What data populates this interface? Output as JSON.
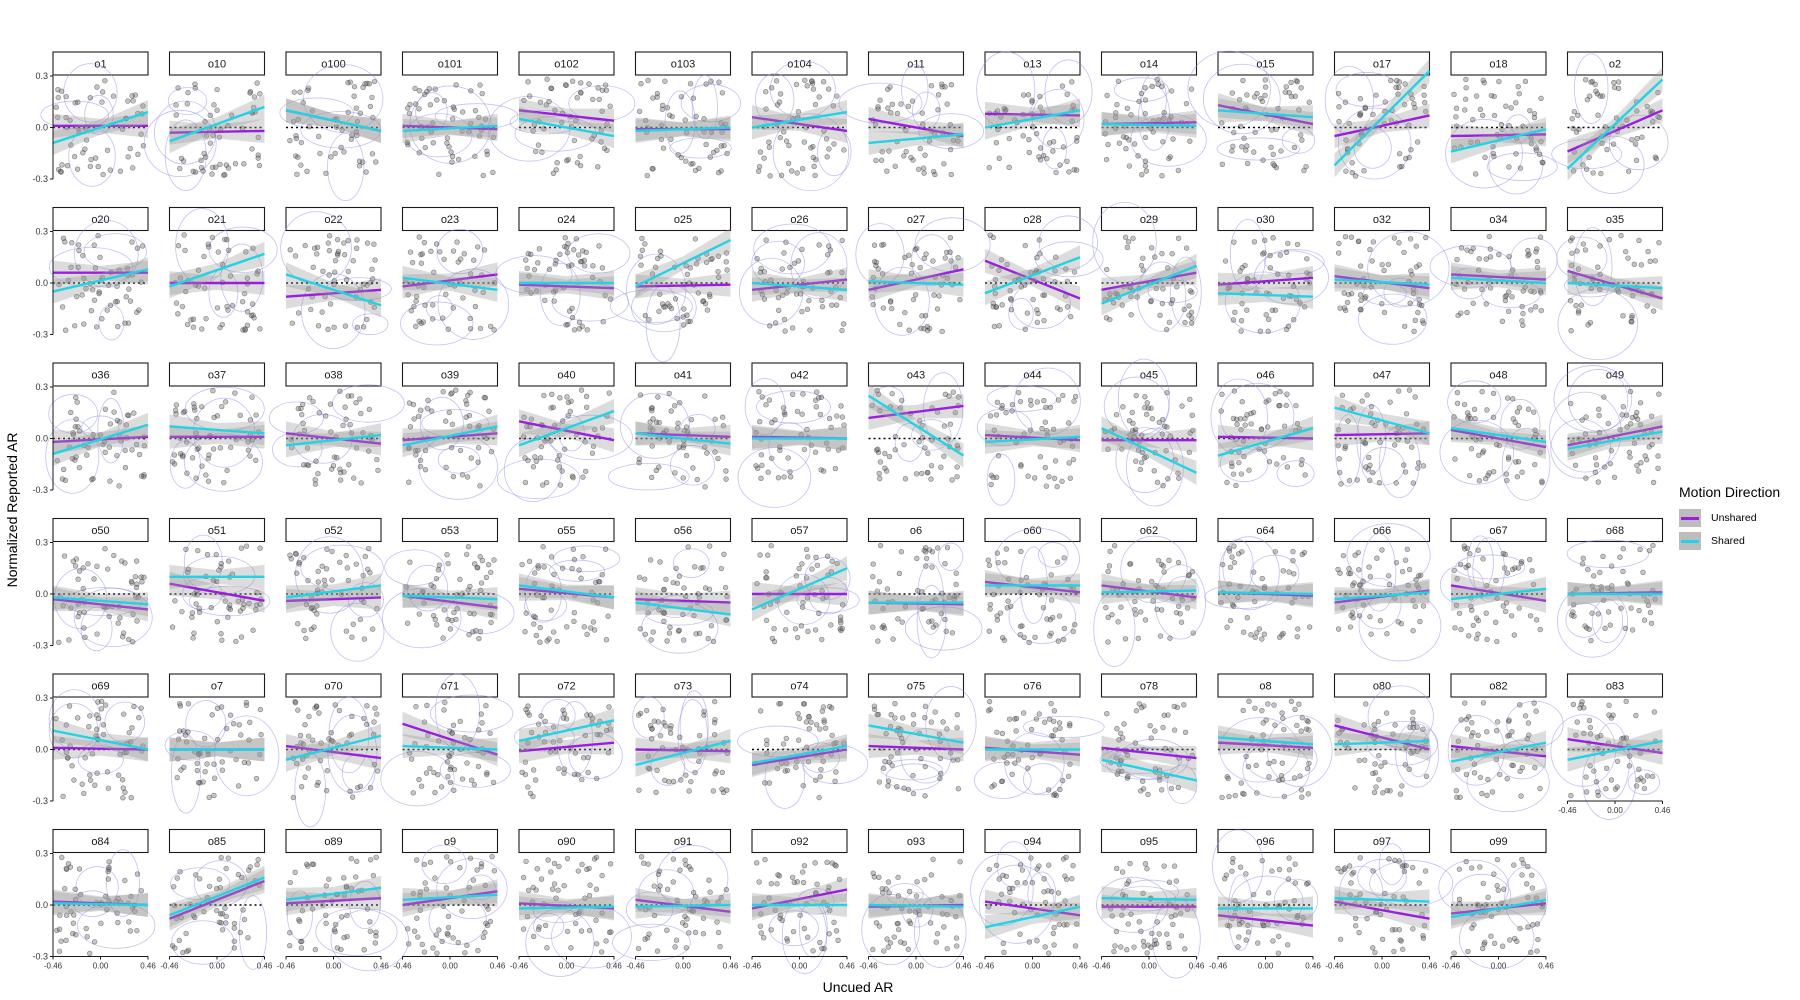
{
  "chart_data": {
    "type": "scatter",
    "layout": "facet_grid",
    "xlabel": "Uncued AR",
    "ylabel": "Normalized Reported AR",
    "x_ticks": [
      "-0.46",
      "0.00",
      "0.46"
    ],
    "y_ticks": [
      "0.3",
      "0.0",
      "-0.3"
    ],
    "xlim": [
      -0.46,
      0.46
    ],
    "ylim": [
      -0.3,
      0.3
    ],
    "reference_line": {
      "y": 0,
      "style": "dotted"
    },
    "grid": false,
    "legend": {
      "title": "Motion Direction",
      "placement": "right",
      "entries": [
        {
          "label": "Unshared",
          "color": "#9b1ee0"
        },
        {
          "label": "Shared",
          "color": "#22d3e6"
        }
      ]
    },
    "colors": {
      "unshared": "#9b1ee0",
      "shared": "#22d3e6",
      "points": "#5a5a5a",
      "ribbon": "#c4c4c4",
      "contour": "#8f8fe6"
    },
    "facets": [
      {
        "id": "o1",
        "unshared": [
          0.01,
          0.01
        ],
        "shared": [
          -0.09,
          0.09
        ]
      },
      {
        "id": "o10",
        "unshared": [
          -0.03,
          -0.02
        ],
        "shared": [
          -0.08,
          0.12
        ]
      },
      {
        "id": "o100",
        "unshared": [
          0.1,
          -0.02
        ],
        "shared": [
          0.1,
          -0.02
        ]
      },
      {
        "id": "o101",
        "unshared": [
          0.01,
          -0.01
        ],
        "shared": [
          -0.02,
          0.01
        ]
      },
      {
        "id": "o102",
        "unshared": [
          0.1,
          0.04
        ],
        "shared": [
          0.05,
          -0.05
        ]
      },
      {
        "id": "o103",
        "unshared": [
          -0.01,
          -0.01
        ],
        "shared": [
          -0.02,
          0.0
        ]
      },
      {
        "id": "o104",
        "unshared": [
          0.06,
          -0.02
        ],
        "shared": [
          0.0,
          0.09
        ]
      },
      {
        "id": "o11",
        "unshared": [
          0.05,
          -0.05
        ],
        "shared": [
          -0.09,
          -0.04
        ]
      },
      {
        "id": "o13",
        "unshared": [
          0.08,
          0.07
        ],
        "shared": [
          0.0,
          0.1
        ]
      },
      {
        "id": "o14",
        "unshared": [
          0.02,
          0.03
        ],
        "shared": [
          0.02,
          0.01
        ]
      },
      {
        "id": "o15",
        "unshared": [
          0.13,
          0.02
        ],
        "shared": [
          0.1,
          0.06
        ]
      },
      {
        "id": "o17",
        "unshared": [
          -0.05,
          0.07
        ],
        "shared": [
          -0.22,
          0.33
        ]
      },
      {
        "id": "o18",
        "unshared": [
          -0.05,
          -0.04
        ],
        "shared": [
          -0.14,
          -0.01
        ]
      },
      {
        "id": "o2",
        "unshared": [
          -0.14,
          0.1
        ],
        "shared": [
          -0.24,
          0.28
        ]
      },
      {
        "id": "o20",
        "unshared": [
          0.06,
          0.06
        ],
        "shared": [
          -0.05,
          0.08
        ]
      },
      {
        "id": "o21",
        "unshared": [
          0.0,
          0.0
        ],
        "shared": [
          -0.02,
          0.17
        ]
      },
      {
        "id": "o22",
        "unshared": [
          -0.08,
          -0.04
        ],
        "shared": [
          0.05,
          -0.13
        ]
      },
      {
        "id": "o23",
        "unshared": [
          -0.02,
          0.05
        ],
        "shared": [
          0.03,
          -0.04
        ]
      },
      {
        "id": "o24",
        "unshared": [
          -0.01,
          -0.03
        ],
        "shared": [
          0.0,
          0.0
        ]
      },
      {
        "id": "o25",
        "unshared": [
          -0.02,
          -0.01
        ],
        "shared": [
          -0.02,
          0.25
        ]
      },
      {
        "id": "o26",
        "unshared": [
          -0.04,
          0.02
        ],
        "shared": [
          0.0,
          -0.04
        ]
      },
      {
        "id": "o27",
        "unshared": [
          -0.04,
          0.08
        ],
        "shared": [
          0.01,
          -0.01
        ]
      },
      {
        "id": "o28",
        "unshared": [
          0.13,
          -0.09
        ],
        "shared": [
          -0.06,
          0.15
        ]
      },
      {
        "id": "o29",
        "unshared": [
          -0.04,
          0.06
        ],
        "shared": [
          -0.12,
          0.1
        ]
      },
      {
        "id": "o30",
        "unshared": [
          -0.01,
          0.03
        ],
        "shared": [
          -0.06,
          -0.08
        ]
      },
      {
        "id": "o32",
        "unshared": [
          0.04,
          -0.03
        ],
        "shared": [
          0.02,
          -0.01
        ]
      },
      {
        "id": "o34",
        "unshared": [
          0.05,
          0.02
        ],
        "shared": [
          0.03,
          0.0
        ]
      },
      {
        "id": "o35",
        "unshared": [
          0.07,
          -0.09
        ],
        "shared": [
          0.0,
          -0.03
        ]
      },
      {
        "id": "o36",
        "unshared": [
          -0.02,
          0.01
        ],
        "shared": [
          -0.09,
          0.08
        ]
      },
      {
        "id": "o37",
        "unshared": [
          0.01,
          0.01
        ],
        "shared": [
          0.07,
          0.03
        ]
      },
      {
        "id": "o38",
        "unshared": [
          0.03,
          -0.03
        ],
        "shared": [
          -0.04,
          0.02
        ]
      },
      {
        "id": "o39",
        "unshared": [
          -0.01,
          0.03
        ],
        "shared": [
          -0.04,
          0.07
        ]
      },
      {
        "id": "o40",
        "unshared": [
          0.1,
          -0.01
        ],
        "shared": [
          -0.04,
          0.16
        ]
      },
      {
        "id": "o41",
        "unshared": [
          0.03,
          0.01
        ],
        "shared": [
          0.03,
          -0.03
        ]
      },
      {
        "id": "o42",
        "unshared": [
          0.01,
          0.0
        ],
        "shared": [
          0.0,
          0.0
        ]
      },
      {
        "id": "o43",
        "unshared": [
          0.12,
          0.19
        ],
        "shared": [
          0.25,
          -0.1
        ]
      },
      {
        "id": "o44",
        "unshared": [
          0.02,
          -0.01
        ],
        "shared": [
          -0.02,
          0.01
        ]
      },
      {
        "id": "o45",
        "unshared": [
          -0.01,
          -0.01
        ],
        "shared": [
          0.06,
          -0.2
        ]
      },
      {
        "id": "o46",
        "unshared": [
          0.01,
          0.0
        ],
        "shared": [
          -0.1,
          0.06
        ]
      },
      {
        "id": "o47",
        "unshared": [
          0.02,
          0.03
        ],
        "shared": [
          0.18,
          0.03
        ]
      },
      {
        "id": "o48",
        "unshared": [
          0.05,
          -0.05
        ],
        "shared": [
          0.06,
          -0.02
        ]
      },
      {
        "id": "o49",
        "unshared": [
          -0.04,
          0.07
        ],
        "shared": [
          -0.06,
          0.04
        ]
      },
      {
        "id": "o50",
        "unshared": [
          -0.03,
          -0.09
        ],
        "shared": [
          -0.02,
          -0.06
        ]
      },
      {
        "id": "o51",
        "unshared": [
          0.06,
          -0.04
        ],
        "shared": [
          0.1,
          0.1
        ]
      },
      {
        "id": "o52",
        "unshared": [
          -0.04,
          -0.02
        ],
        "shared": [
          -0.02,
          0.05
        ]
      },
      {
        "id": "o53",
        "unshared": [
          -0.01,
          -0.08
        ],
        "shared": [
          -0.01,
          -0.03
        ]
      },
      {
        "id": "o55",
        "unshared": [
          0.03,
          -0.02
        ],
        "shared": [
          0.05,
          -0.02
        ]
      },
      {
        "id": "o56",
        "unshared": [
          -0.03,
          -0.05
        ],
        "shared": [
          -0.05,
          -0.12
        ]
      },
      {
        "id": "o57",
        "unshared": [
          0.0,
          0.0
        ],
        "shared": [
          -0.09,
          0.15
        ]
      },
      {
        "id": "o6",
        "unshared": [
          -0.05,
          -0.06
        ],
        "shared": [
          -0.05,
          -0.05
        ]
      },
      {
        "id": "o60",
        "unshared": [
          0.07,
          0.01
        ],
        "shared": [
          0.05,
          0.05
        ]
      },
      {
        "id": "o62",
        "unshared": [
          0.05,
          -0.02
        ],
        "shared": [
          0.01,
          0.02
        ]
      },
      {
        "id": "o64",
        "unshared": [
          0.01,
          -0.01
        ],
        "shared": [
          0.01,
          0.0
        ]
      },
      {
        "id": "o66",
        "unshared": [
          -0.05,
          0.02
        ],
        "shared": [
          -0.03,
          0.01
        ]
      },
      {
        "id": "o67",
        "unshared": [
          0.05,
          -0.04
        ],
        "shared": [
          -0.03,
          0.03
        ]
      },
      {
        "id": "o68",
        "unshared": [
          0.0,
          0.01
        ],
        "shared": [
          0.0,
          0.0
        ]
      },
      {
        "id": "o69",
        "unshared": [
          0.01,
          0.0
        ],
        "shared": [
          0.11,
          0.0
        ]
      },
      {
        "id": "o7",
        "unshared": [
          0.0,
          0.0
        ],
        "shared": [
          0.0,
          0.0
        ]
      },
      {
        "id": "o70",
        "unshared": [
          0.02,
          -0.05
        ],
        "shared": [
          -0.06,
          0.08
        ]
      },
      {
        "id": "o71",
        "unshared": [
          0.15,
          -0.03
        ],
        "shared": [
          0.02,
          0.0
        ]
      },
      {
        "id": "o72",
        "unshared": [
          -0.01,
          0.04
        ],
        "shared": [
          0.05,
          0.17
        ]
      },
      {
        "id": "o73",
        "unshared": [
          0.0,
          -0.01
        ],
        "shared": [
          -0.09,
          0.05
        ]
      },
      {
        "id": "o74",
        "unshared": [
          -0.09,
          0.0
        ],
        "shared": [
          -0.08,
          0.02
        ]
      },
      {
        "id": "o75",
        "unshared": [
          0.02,
          0.0
        ],
        "shared": [
          0.14,
          0.04
        ]
      },
      {
        "id": "o76",
        "unshared": [
          0.01,
          -0.03
        ],
        "shared": [
          0.0,
          0.0
        ]
      },
      {
        "id": "o78",
        "unshared": [
          0.01,
          -0.05
        ],
        "shared": [
          -0.06,
          -0.18
        ]
      },
      {
        "id": "o8",
        "unshared": [
          0.04,
          0.01
        ],
        "shared": [
          0.07,
          0.03
        ]
      },
      {
        "id": "o80",
        "unshared": [
          0.14,
          0.0
        ],
        "shared": [
          0.03,
          0.05
        ]
      },
      {
        "id": "o82",
        "unshared": [
          0.02,
          -0.04
        ],
        "shared": [
          -0.07,
          0.04
        ]
      },
      {
        "id": "o83",
        "unshared": [
          0.06,
          -0.02
        ],
        "shared": [
          -0.06,
          0.05
        ]
      },
      {
        "id": "o84",
        "unshared": [
          0.02,
          0.0
        ],
        "shared": [
          0.01,
          0.0
        ]
      },
      {
        "id": "o85",
        "unshared": [
          -0.08,
          0.14
        ],
        "shared": [
          -0.06,
          0.16
        ]
      },
      {
        "id": "o89",
        "unshared": [
          0.01,
          0.04
        ],
        "shared": [
          0.03,
          0.1
        ]
      },
      {
        "id": "o9",
        "unshared": [
          0.0,
          0.08
        ],
        "shared": [
          0.03,
          0.06
        ]
      },
      {
        "id": "o90",
        "unshared": [
          0.01,
          -0.02
        ],
        "shared": [
          -0.02,
          -0.01
        ]
      },
      {
        "id": "o91",
        "unshared": [
          0.03,
          -0.04
        ],
        "shared": [
          -0.01,
          0.0
        ]
      },
      {
        "id": "o92",
        "unshared": [
          -0.02,
          0.09
        ],
        "shared": [
          0.0,
          0.0
        ]
      },
      {
        "id": "o93",
        "unshared": [
          -0.01,
          0.0
        ],
        "shared": [
          0.0,
          -0.01
        ]
      },
      {
        "id": "o94",
        "unshared": [
          0.02,
          -0.06
        ],
        "shared": [
          -0.13,
          -0.01
        ]
      },
      {
        "id": "o95",
        "unshared": [
          -0.01,
          -0.01
        ],
        "shared": [
          0.04,
          0.03
        ]
      },
      {
        "id": "o96",
        "unshared": [
          -0.06,
          -0.12
        ],
        "shared": [
          -0.02,
          -0.02
        ]
      },
      {
        "id": "o97",
        "unshared": [
          0.02,
          -0.08
        ],
        "shared": [
          0.04,
          0.02
        ]
      },
      {
        "id": "o99",
        "unshared": [
          -0.05,
          0.01
        ],
        "shared": [
          -0.07,
          0.03
        ]
      }
    ]
  }
}
